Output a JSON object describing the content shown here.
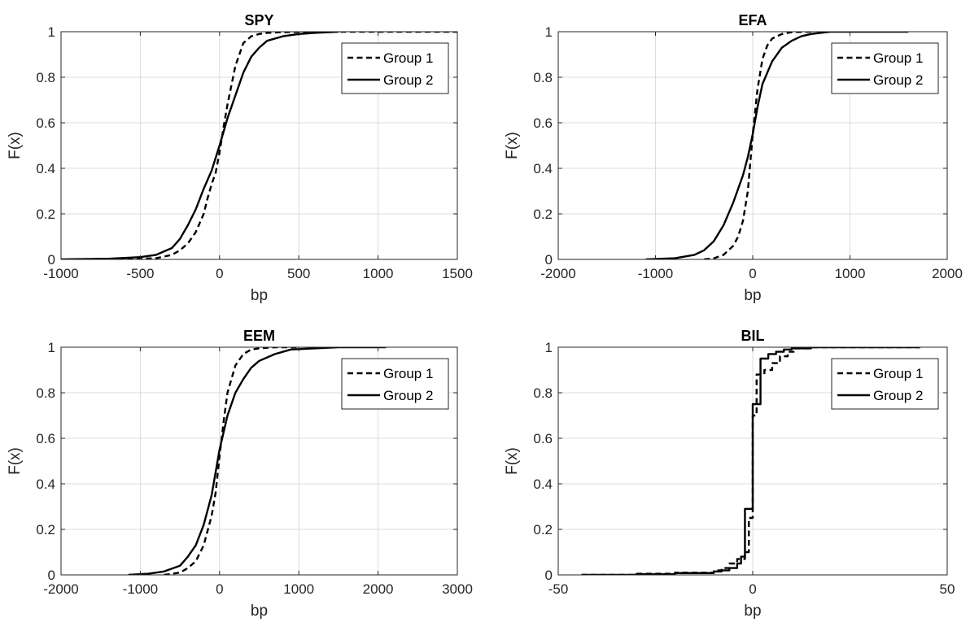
{
  "chart_data": [
    {
      "type": "line",
      "title": "SPY",
      "xlabel": "bp",
      "ylabel": "F(x)",
      "xlim": [
        -1000,
        1500
      ],
      "ylim": [
        0,
        1
      ],
      "xticks": [
        -1000,
        -500,
        0,
        500,
        1000,
        1500
      ],
      "yticks": [
        0,
        0.2,
        0.4,
        0.6,
        0.8,
        1
      ],
      "grid": true,
      "legend_position": "top-right",
      "series": [
        {
          "name": "Group 1",
          "style": "dashed",
          "x": [
            -700,
            -400,
            -300,
            -250,
            -200,
            -150,
            -100,
            -75,
            -50,
            -25,
            0,
            25,
            50,
            100,
            150,
            200,
            250,
            300,
            400,
            500,
            600,
            800,
            1500
          ],
          "y": [
            0,
            0.005,
            0.02,
            0.04,
            0.07,
            0.12,
            0.2,
            0.27,
            0.33,
            0.38,
            0.47,
            0.58,
            0.68,
            0.85,
            0.95,
            0.98,
            0.99,
            0.995,
            0.998,
            0.999,
            1,
            1,
            1
          ]
        },
        {
          "name": "Group 2",
          "style": "solid",
          "x": [
            -1000,
            -700,
            -500,
            -400,
            -300,
            -250,
            -200,
            -150,
            -100,
            -50,
            0,
            50,
            100,
            150,
            200,
            250,
            300,
            400,
            500,
            600,
            750
          ],
          "y": [
            0,
            0.003,
            0.01,
            0.02,
            0.05,
            0.09,
            0.15,
            0.22,
            0.31,
            0.39,
            0.5,
            0.62,
            0.72,
            0.82,
            0.89,
            0.93,
            0.96,
            0.98,
            0.99,
            0.995,
            1
          ]
        }
      ]
    },
    {
      "type": "line",
      "title": "EFA",
      "xlabel": "bp",
      "ylabel": "F(x)",
      "xlim": [
        -2000,
        2000
      ],
      "ylim": [
        0,
        1
      ],
      "xticks": [
        -2000,
        -1000,
        0,
        1000,
        2000
      ],
      "yticks": [
        0,
        0.2,
        0.4,
        0.6,
        0.8,
        1
      ],
      "grid": true,
      "legend_position": "top-right",
      "series": [
        {
          "name": "Group 1",
          "style": "dashed",
          "x": [
            -500,
            -400,
            -300,
            -200,
            -150,
            -100,
            -50,
            0,
            50,
            100,
            150,
            200,
            300,
            400,
            600
          ],
          "y": [
            0,
            0.005,
            0.02,
            0.06,
            0.1,
            0.17,
            0.3,
            0.55,
            0.75,
            0.88,
            0.94,
            0.97,
            0.99,
            0.998,
            1
          ]
        },
        {
          "name": "Group 2",
          "style": "solid",
          "x": [
            -1100,
            -800,
            -600,
            -500,
            -400,
            -300,
            -200,
            -100,
            -50,
            0,
            50,
            100,
            200,
            300,
            400,
            500,
            600,
            800,
            1600
          ],
          "y": [
            0,
            0.005,
            0.02,
            0.04,
            0.08,
            0.15,
            0.25,
            0.37,
            0.45,
            0.55,
            0.67,
            0.77,
            0.87,
            0.93,
            0.96,
            0.98,
            0.99,
            1,
            1
          ]
        }
      ]
    },
    {
      "type": "line",
      "title": "EEM",
      "xlabel": "bp",
      "ylabel": "F(x)",
      "xlim": [
        -2000,
        3000
      ],
      "ylim": [
        0,
        1
      ],
      "xticks": [
        -2000,
        -1000,
        0,
        1000,
        2000,
        3000
      ],
      "yticks": [
        0,
        0.2,
        0.4,
        0.6,
        0.8,
        1
      ],
      "grid": true,
      "legend_position": "top-right",
      "series": [
        {
          "name": "Group 1",
          "style": "dashed",
          "x": [
            -700,
            -500,
            -400,
            -300,
            -200,
            -100,
            -50,
            0,
            50,
            100,
            200,
            300,
            400,
            500,
            700,
            1000
          ],
          "y": [
            0,
            0.01,
            0.03,
            0.06,
            0.13,
            0.26,
            0.36,
            0.52,
            0.67,
            0.8,
            0.92,
            0.97,
            0.99,
            0.995,
            1,
            1
          ]
        },
        {
          "name": "Group 2",
          "style": "solid",
          "x": [
            -1150,
            -900,
            -700,
            -500,
            -400,
            -300,
            -200,
            -100,
            0,
            100,
            200,
            300,
            400,
            500,
            700,
            900,
            1200,
            1500,
            2100
          ],
          "y": [
            0,
            0.005,
            0.015,
            0.04,
            0.08,
            0.13,
            0.22,
            0.35,
            0.55,
            0.7,
            0.8,
            0.86,
            0.91,
            0.94,
            0.97,
            0.99,
            0.995,
            1,
            1
          ]
        }
      ]
    },
    {
      "type": "line",
      "title": "BIL",
      "xlabel": "bp",
      "ylabel": "F(x)",
      "xlim": [
        -50,
        50
      ],
      "ylim": [
        0,
        1
      ],
      "xticks": [
        -50,
        0,
        50
      ],
      "yticks": [
        0,
        0.2,
        0.4,
        0.6,
        0.8,
        1
      ],
      "grid": true,
      "legend_position": "top-right",
      "series": [
        {
          "name": "Group 1",
          "style": "dashed",
          "step": true,
          "x": [
            -44,
            -30,
            -20,
            -10,
            -8,
            -6,
            -4,
            -2,
            -1,
            0,
            1,
            3,
            5,
            7,
            9,
            11,
            15,
            43
          ],
          "y": [
            0,
            0.005,
            0.01,
            0.02,
            0.03,
            0.05,
            0.07,
            0.1,
            0.25,
            0.7,
            0.88,
            0.9,
            0.93,
            0.96,
            0.98,
            0.995,
            1,
            1
          ]
        },
        {
          "name": "Group 2",
          "style": "solid",
          "step": true,
          "x": [
            -44,
            -30,
            -20,
            -10,
            -8,
            -6,
            -4,
            -3,
            -2,
            0,
            2,
            4,
            6,
            8,
            10,
            15,
            43
          ],
          "y": [
            0,
            0.003,
            0.008,
            0.015,
            0.02,
            0.03,
            0.05,
            0.08,
            0.29,
            0.75,
            0.95,
            0.97,
            0.98,
            0.99,
            0.995,
            1,
            1
          ]
        }
      ]
    }
  ]
}
